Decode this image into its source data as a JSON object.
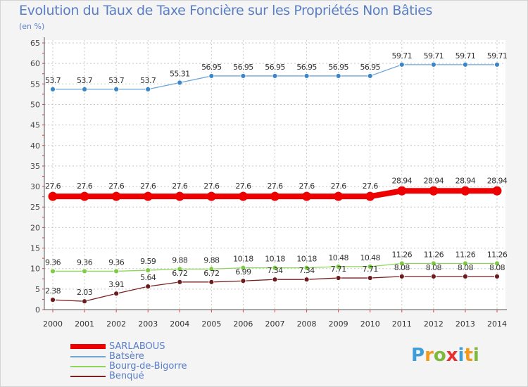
{
  "title": "Evolution du Taux de Taxe Foncière sur les Propriétés Non Bâties",
  "subtitle": "(en %)",
  "logo": {
    "text": "Proxiti",
    "letter_colors": [
      "#3c9dd8",
      "#f39a1b",
      "#7fb93a",
      "#e8312f",
      "#3c9dd8",
      "#f39a1b",
      "#7fb93a"
    ]
  },
  "chart_data": {
    "type": "line",
    "title": "Evolution du Taux de Taxe Foncière sur les Propriétés Non Bâties",
    "ylabel": "(en %)",
    "xlabel": "",
    "ylim": [
      0,
      65
    ],
    "yticks": [
      0,
      5,
      10,
      15,
      20,
      25,
      30,
      35,
      40,
      45,
      50,
      55,
      60,
      65
    ],
    "grid": true,
    "categories": [
      "2000",
      "2001",
      "2002",
      "2003",
      "2004",
      "2005",
      "2006",
      "2007",
      "2008",
      "2009",
      "2010",
      "2011",
      "2012",
      "2013",
      "2014"
    ],
    "series": [
      {
        "name": "SARLABOUS",
        "color": "#ee0000",
        "emphasis": true,
        "values": [
          27.6,
          27.6,
          27.6,
          27.6,
          27.6,
          27.6,
          27.6,
          27.6,
          27.6,
          27.6,
          27.6,
          28.94,
          28.94,
          28.94,
          28.94
        ],
        "labels": [
          "27.6",
          "27.6",
          "27.6",
          "27.6",
          "27.6",
          "27.6",
          "27.6",
          "27.6",
          "27.6",
          "27.6",
          "27.6",
          "28.94",
          "28.94",
          "28.94",
          "28.94"
        ]
      },
      {
        "name": "Batsère",
        "color": "#6fa6d8",
        "marker": "#3a86c8",
        "values": [
          53.7,
          53.7,
          53.7,
          53.7,
          55.31,
          56.95,
          56.95,
          56.95,
          56.95,
          56.95,
          56.95,
          59.71,
          59.71,
          59.71,
          59.71
        ],
        "labels": [
          "53.7",
          "53.7",
          "53.7",
          "53.7",
          "55.31",
          "56.95",
          "56.95",
          "56.95",
          "56.95",
          "56.95",
          "56.95",
          "59.71",
          "59.71",
          "59.71",
          "59.71"
        ]
      },
      {
        "name": "Bourg-de-Bigorre",
        "color": "#8ed65a",
        "marker": "#7ecb45",
        "values": [
          9.36,
          9.36,
          9.36,
          9.59,
          9.88,
          9.88,
          10.18,
          10.18,
          10.18,
          10.48,
          10.48,
          11.26,
          11.26,
          11.26,
          11.26
        ],
        "labels": [
          "9.36",
          "9.36",
          "9.36",
          "9.59",
          "9.88",
          "9.88",
          "10.18",
          "10.18",
          "10.18",
          "10.48",
          "10.48",
          "11.26",
          "11.26",
          "11.26",
          "11.26"
        ]
      },
      {
        "name": "Benqué",
        "color": "#7a2222",
        "marker": "#6b1c1c",
        "values": [
          2.38,
          2.03,
          3.91,
          5.64,
          6.72,
          6.72,
          6.99,
          7.34,
          7.34,
          7.71,
          7.71,
          8.08,
          8.08,
          8.08,
          8.08
        ],
        "labels": [
          "2.38",
          "2.03",
          "3.91",
          "5.64",
          "6.72",
          "6.72",
          "6.99",
          "7.34",
          "7.34",
          "7.71",
          "7.71",
          "8.08",
          "8.08",
          "8.08",
          "8.08"
        ]
      }
    ]
  }
}
